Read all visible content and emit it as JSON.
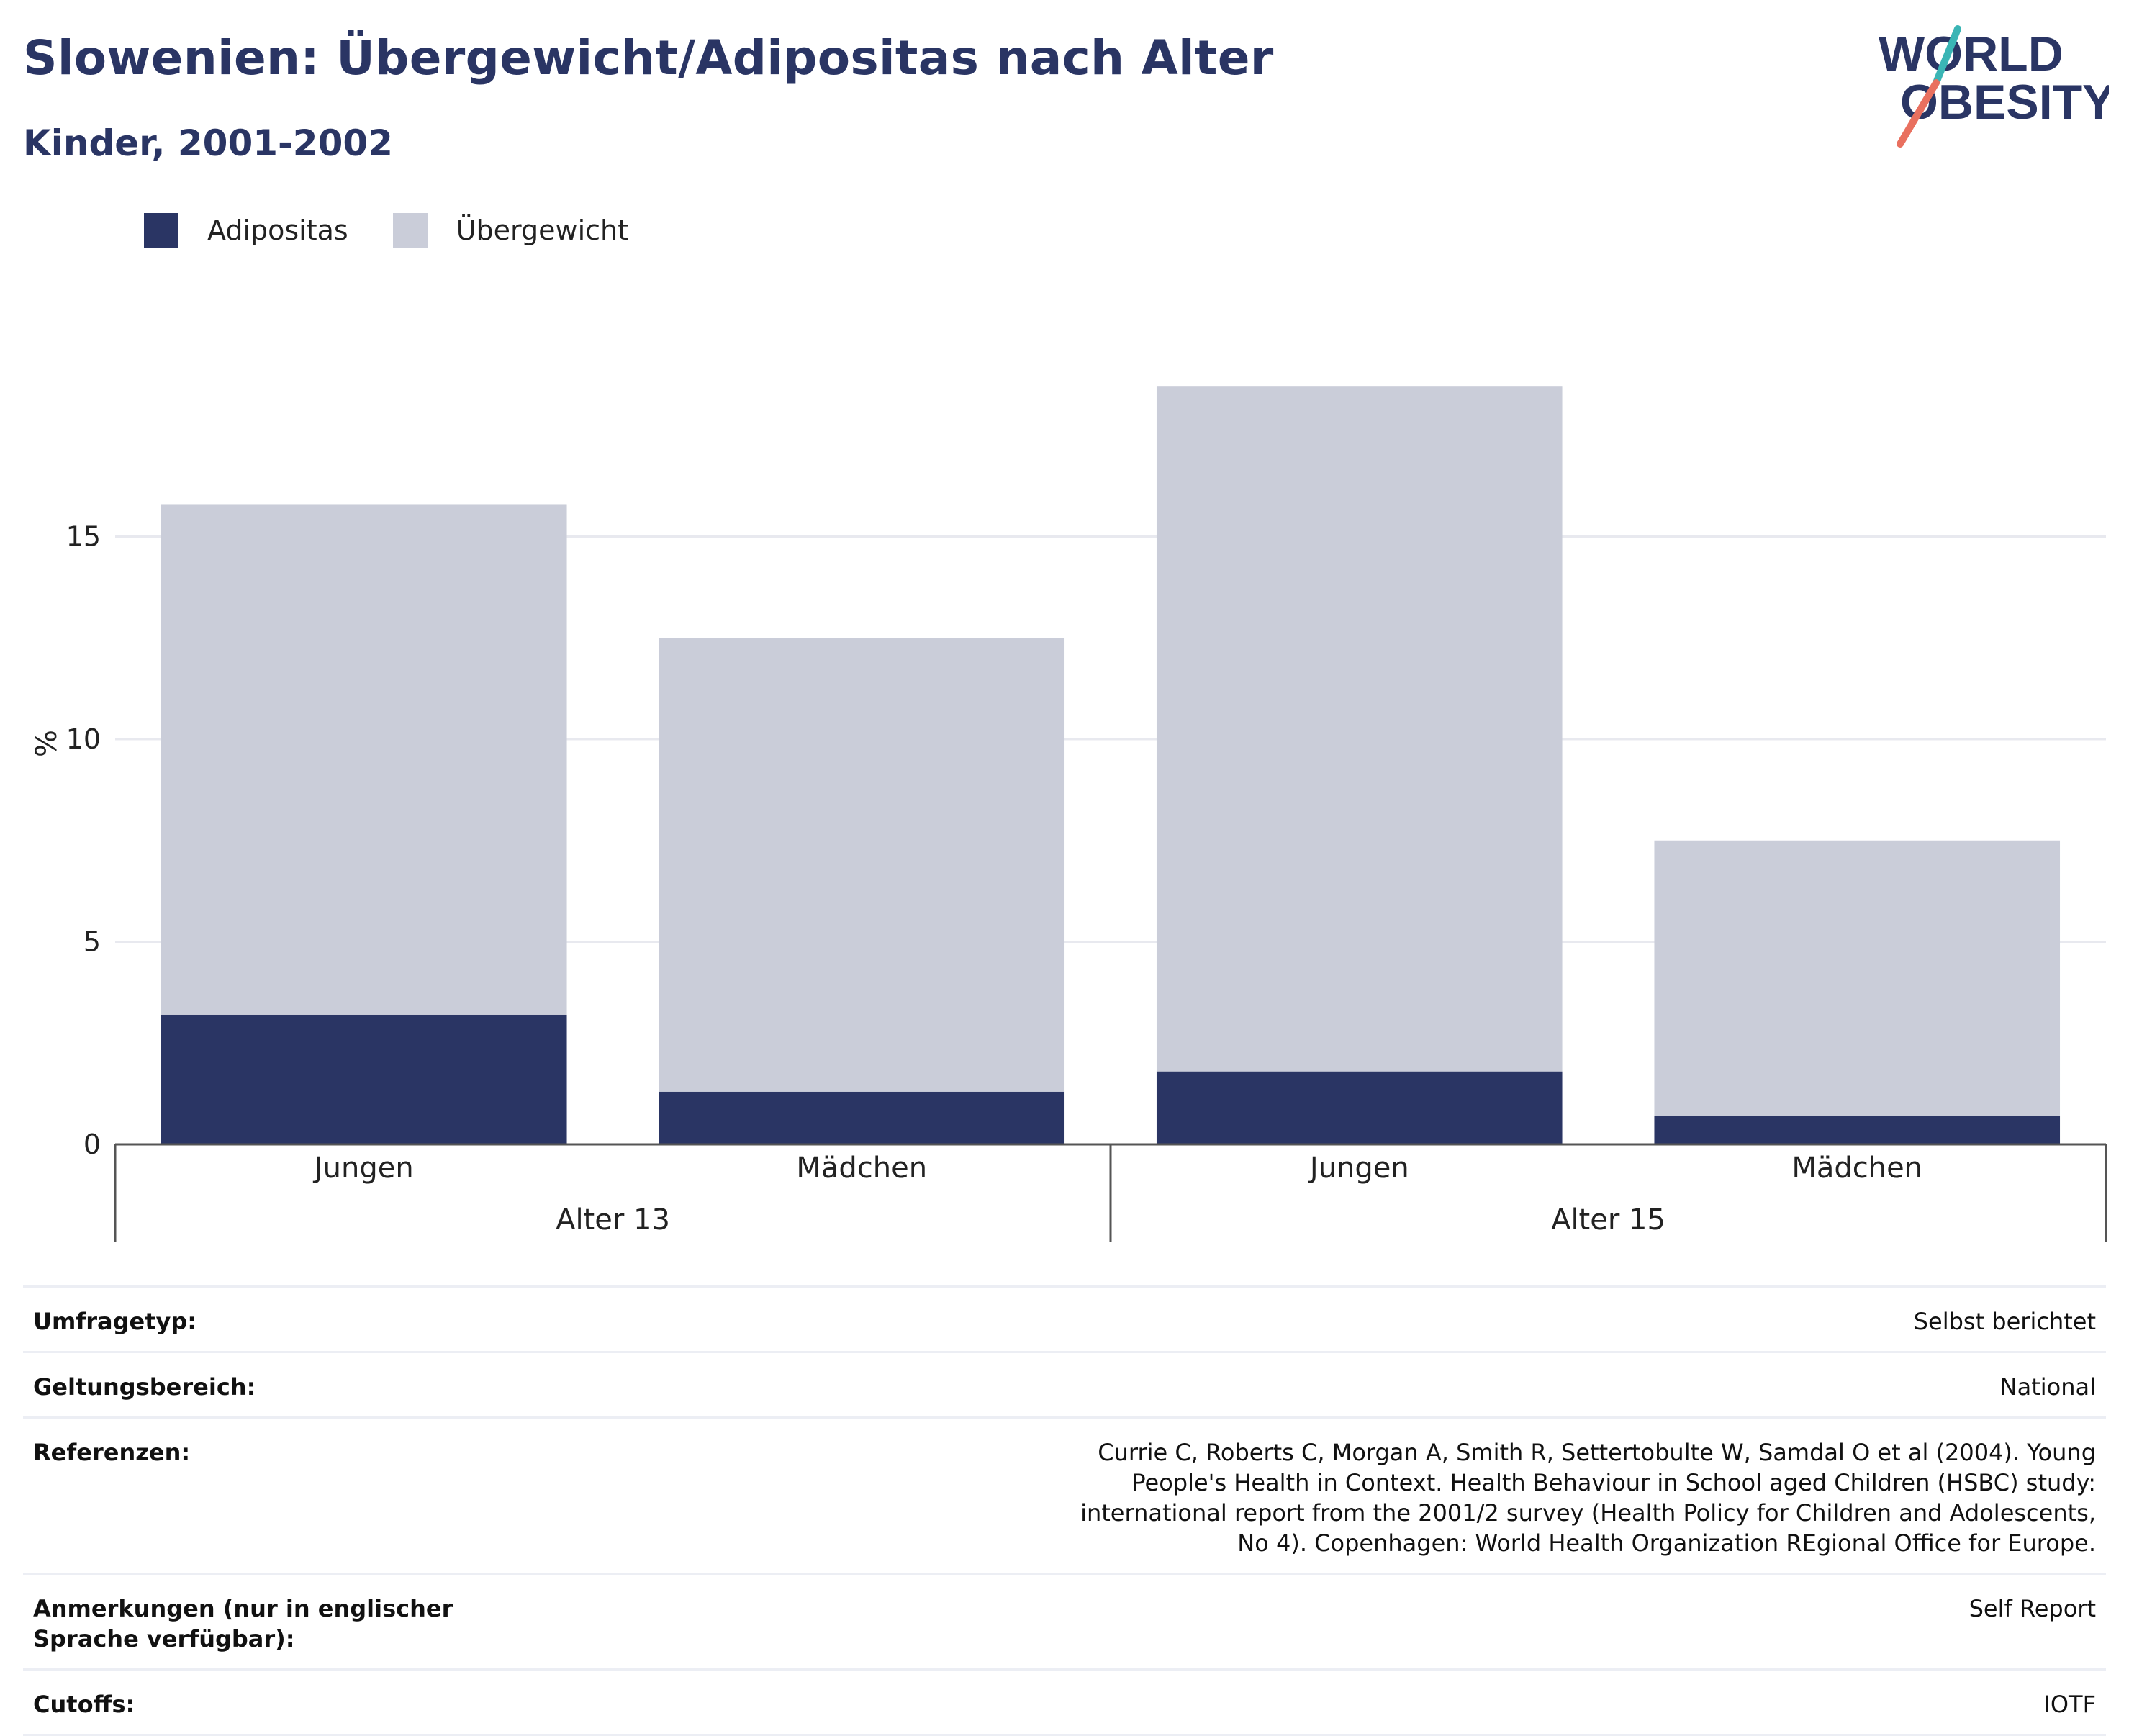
{
  "header": {
    "title": "Slowenien: Übergewicht/Adipositas nach Alter",
    "subtitle": "Kinder, 2001-2002"
  },
  "logo": {
    "line1": "WORLD",
    "line2": "OBESITY",
    "colors": {
      "text": "#2a3564",
      "slash_teal": "#3ab5b5",
      "slash_coral": "#e9705f"
    }
  },
  "colors": {
    "adipositas": "#2a3564",
    "uebergewicht": "#cacdd9",
    "grid": "#e8e9ef",
    "axis": "#555555"
  },
  "chart_data": {
    "type": "bar",
    "stacked": true,
    "ylabel": "%",
    "ylim": [
      0,
      20
    ],
    "yticks": [
      0,
      5,
      10,
      15
    ],
    "grid": true,
    "legend_position": "top-left",
    "groups": [
      {
        "label": "Alter 13",
        "categories": [
          "Jungen",
          "Mädchen"
        ]
      },
      {
        "label": "Alter 15",
        "categories": [
          "Jungen",
          "Mädchen"
        ]
      }
    ],
    "series": [
      {
        "name": "Adipositas",
        "color": "#2a3564",
        "values": [
          3.2,
          1.3,
          1.8,
          0.7
        ]
      },
      {
        "name": "Übergewicht",
        "color": "#cacdd9",
        "values": [
          12.6,
          11.2,
          16.9,
          6.8
        ]
      }
    ]
  },
  "info": {
    "rows": [
      {
        "key": "Umfragetyp:",
        "value": "Selbst berichtet"
      },
      {
        "key": "Geltungsbereich:",
        "value": "National"
      },
      {
        "key": "Referenzen:",
        "value": "Currie C, Roberts C, Morgan A, Smith R, Settertobulte W, Samdal O et al (2004). Young People's Health in Context. Health Behaviour in School aged Children (HSBC) study: international report from the 2001/2 survey (Health Policy for Children and Adolescents, No 4). Copenhagen: World Health Organization REgional Office for Europe."
      },
      {
        "key": "Anmerkungen (nur in englischer Sprache verfügbar):",
        "value": "Self Report"
      },
      {
        "key": "Cutoffs:",
        "value": "IOTF"
      }
    ]
  }
}
